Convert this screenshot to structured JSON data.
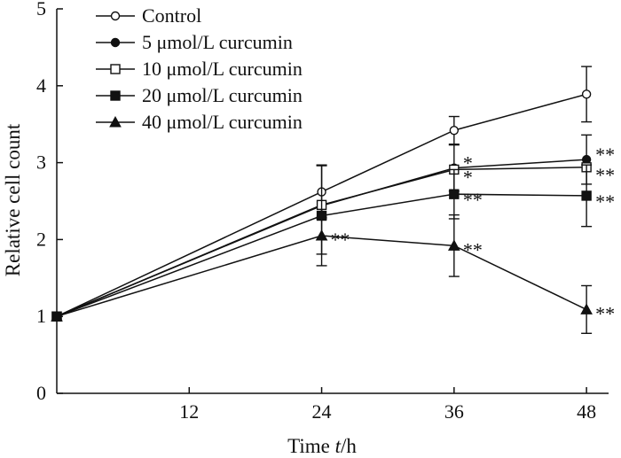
{
  "chart_data": {
    "type": "line",
    "title": "",
    "xlabel_prefix": "Time ",
    "xlabel_var": "t",
    "xlabel_unit": "/h",
    "ylabel": "Relative cell count",
    "x": [
      0,
      24,
      36,
      48
    ],
    "xlim": [
      0,
      50
    ],
    "ylim": [
      0,
      5
    ],
    "xticks": [
      12,
      24,
      36,
      48
    ],
    "yticks": [
      0,
      1,
      2,
      3,
      4,
      5
    ],
    "grid": false,
    "legend_position": "top-left",
    "series": [
      {
        "name": "Control",
        "marker": "circle-open",
        "values": [
          1.0,
          2.62,
          3.42,
          3.89
        ],
        "errors": [
          0,
          0.35,
          0.18,
          0.36
        ],
        "significance": [
          "",
          "",
          "",
          ""
        ]
      },
      {
        "name": "5 μmol/L curcumin",
        "marker": "circle-filled",
        "values": [
          1.0,
          2.44,
          2.93,
          3.04
        ],
        "errors": [
          0,
          0.0,
          0.3,
          0.32
        ],
        "significance": [
          "",
          "",
          "*",
          "**"
        ]
      },
      {
        "name": "10 μmol/L curcumin",
        "marker": "square-open",
        "values": [
          1.0,
          2.45,
          2.91,
          2.94
        ],
        "errors": [
          0,
          0.0,
          0.0,
          0.0
        ],
        "significance": [
          "",
          "",
          "*",
          "**"
        ]
      },
      {
        "name": "20 μmol/L curcumin",
        "marker": "square-filled",
        "values": [
          1.0,
          2.31,
          2.59,
          2.57
        ],
        "errors": [
          0,
          0.65,
          0.32,
          0.4
        ],
        "significance": [
          "",
          "",
          "**",
          "**"
        ]
      },
      {
        "name": "40 μmol/L curcumin",
        "marker": "triangle-filled",
        "values": [
          1.0,
          2.05,
          1.92,
          1.09
        ],
        "errors": [
          0,
          0.24,
          0.4,
          0.31
        ],
        "significance": [
          "",
          "**",
          "**",
          "**"
        ]
      }
    ]
  }
}
